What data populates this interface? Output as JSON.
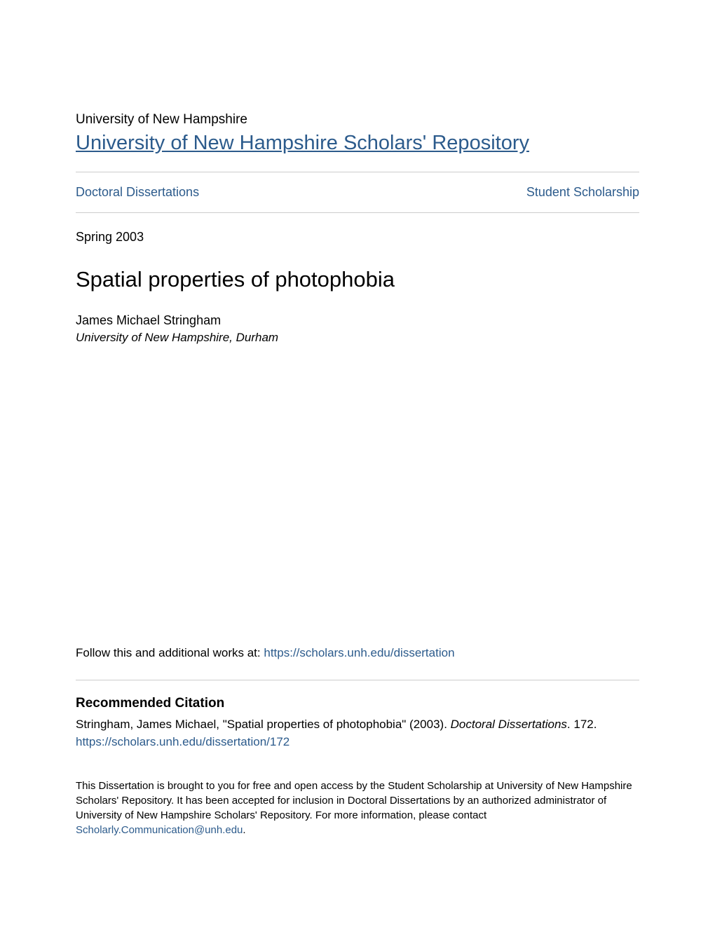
{
  "header": {
    "university_label": "University of New Hampshire",
    "repository_title": "University of New Hampshire Scholars' Repository"
  },
  "nav": {
    "left_link": "Doctoral Dissertations",
    "right_link": "Student Scholarship"
  },
  "meta": {
    "date": "Spring 2003",
    "title": "Spatial properties of photophobia",
    "author_name": "James Michael Stringham",
    "author_affiliation": "University of New Hampshire, Durham"
  },
  "follow": {
    "prefix": "Follow this and additional works at: ",
    "link_text": "https://scholars.unh.edu/dissertation"
  },
  "citation": {
    "heading": "Recommended Citation",
    "text_prefix": "Stringham, James Michael, \"Spatial properties of photophobia\" (2003). ",
    "text_italic": "Doctoral Dissertations",
    "text_suffix": ". 172.",
    "link_text": "https://scholars.unh.edu/dissertation/172"
  },
  "footer": {
    "text": "This Dissertation is brought to you for free and open access by the Student Scholarship at University of New Hampshire Scholars' Repository. It has been accepted for inclusion in Doctoral Dissertations by an authorized administrator of University of New Hampshire Scholars' Repository. For more information, please contact ",
    "link_text": "Scholarly.Communication@unh.edu",
    "suffix": "."
  },
  "colors": {
    "link_color": "#2c5b8c",
    "text_color": "#000000",
    "divider_color": "#cccccc",
    "background_color": "#ffffff"
  }
}
